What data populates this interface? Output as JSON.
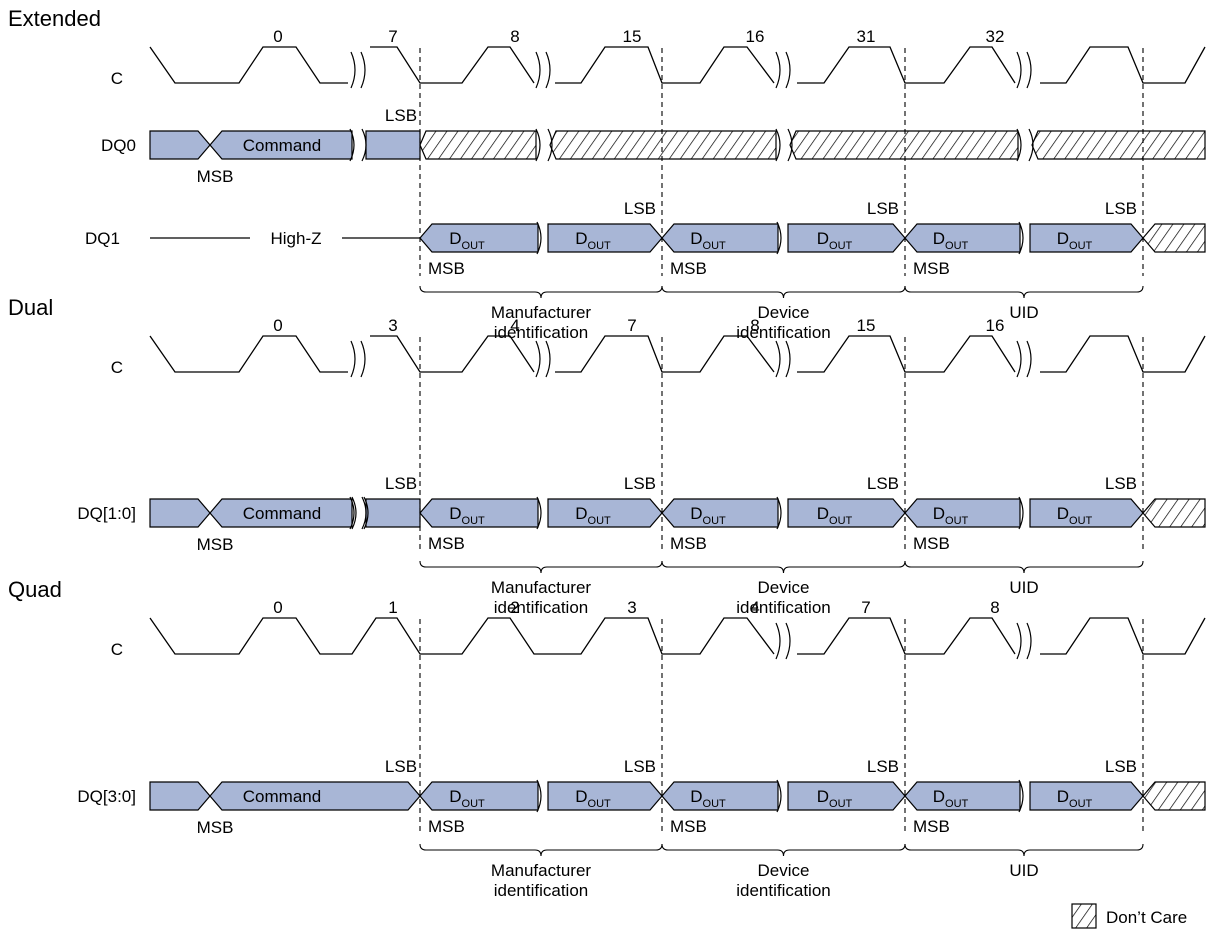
{
  "sections": [
    {
      "title": "Extended",
      "clock_label": "C",
      "cycle_labels": [
        "0",
        "7",
        "8",
        "15",
        "16",
        "31",
        "32"
      ],
      "command_signal": "DQ0",
      "command_text": "Command",
      "msb_label": "MSB",
      "lsb_label": "LSB",
      "output_signal": "DQ1",
      "highz_text": "High-Z",
      "dout_main": "D",
      "dout_sub": "OUT",
      "groups": [
        {
          "msb": "MSB",
          "lsb": "LSB",
          "line1": "Manufacturer",
          "line2": "identification"
        },
        {
          "msb": "MSB",
          "lsb": "LSB",
          "line1": "Device",
          "line2": "identification"
        },
        {
          "msb": "MSB",
          "lsb": "LSB",
          "line1": "UID",
          "line2": ""
        }
      ]
    },
    {
      "title": "Dual",
      "clock_label": "C",
      "cycle_labels": [
        "0",
        "3",
        "4",
        "7",
        "8",
        "15",
        "16"
      ],
      "command_signal": "DQ[1:0]",
      "command_text": "Command",
      "msb_label": "MSB",
      "lsb_label": "LSB",
      "dout_main": "D",
      "dout_sub": "OUT",
      "groups": [
        {
          "msb": "MSB",
          "lsb": "LSB",
          "line1": "Manufacturer",
          "line2": "identification"
        },
        {
          "msb": "MSB",
          "lsb": "LSB",
          "line1": "Device",
          "line2": "identification"
        },
        {
          "msb": "MSB",
          "lsb": "LSB",
          "line1": "UID",
          "line2": ""
        }
      ]
    },
    {
      "title": "Quad",
      "clock_label": "C",
      "cycle_labels": [
        "0",
        "1",
        "2",
        "3",
        "4",
        "7",
        "8"
      ],
      "command_signal": "DQ[3:0]",
      "command_text": "Command",
      "msb_label": "MSB",
      "lsb_label": "LSB",
      "dout_main": "D",
      "dout_sub": "OUT",
      "groups": [
        {
          "msb": "MSB",
          "lsb": "LSB",
          "line1": "Manufacturer",
          "line2": "identification"
        },
        {
          "msb": "MSB",
          "lsb": "LSB",
          "line1": "Device",
          "line2": "identification"
        },
        {
          "msb": "MSB",
          "lsb": "LSB",
          "line1": "UID",
          "line2": ""
        }
      ]
    }
  ],
  "legend": {
    "label": "Don’t Care"
  }
}
